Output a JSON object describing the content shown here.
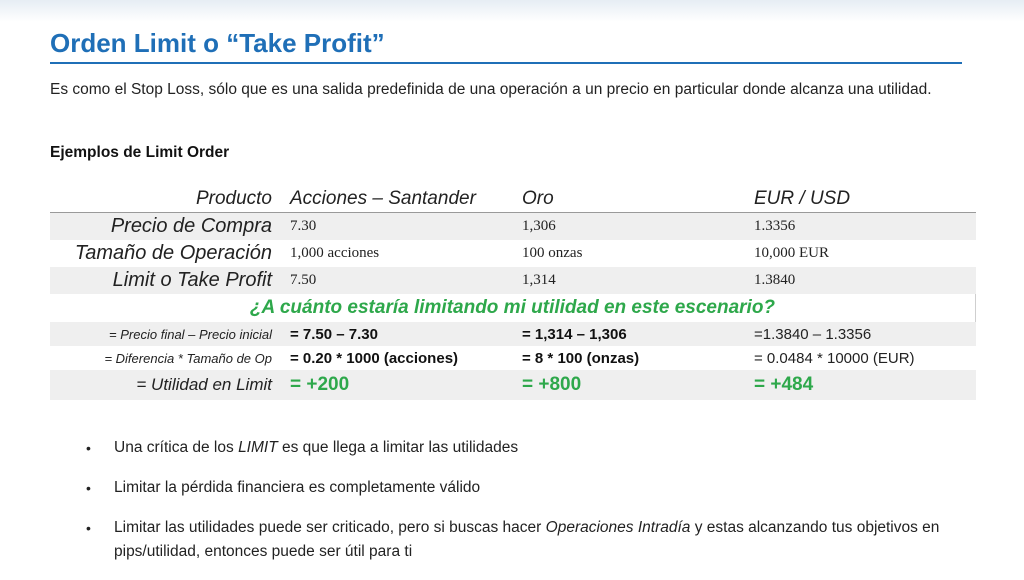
{
  "title": "Orden Limit o “Take Profit”",
  "intro": "Es como el Stop Loss, sólo que es una salida predefinida de una operación a un precio en particular donde alcanza una utilidad.",
  "subheading": "Ejemplos de Limit Order",
  "table": {
    "header": {
      "label": "Producto",
      "c1": "Acciones – Santander",
      "c2": "Oro",
      "c3": "EUR / USD"
    },
    "rows": [
      {
        "label": "Precio de Compra",
        "c1": "7.30",
        "c2": "1,306",
        "c3": "1.3356"
      },
      {
        "label": "Tamaño de Operación",
        "c1": "1,000 acciones",
        "c2": "100 onzas",
        "c3": "10,000 EUR"
      },
      {
        "label": "Limit o Take Profit",
        "c1": "7.50",
        "c2": "1,314",
        "c3": "1.3840"
      }
    ],
    "question": "¿A cuánto estaría limitando mi utilidad en este escenario?",
    "calc": [
      {
        "label": "= Precio final – Precio inicial",
        "c1": "= 7.50 – 7.30",
        "c2": "= 1,314 – 1,306",
        "c3": "=1.3840 – 1.3356"
      },
      {
        "label": "= Diferencia * Tamaño de Op",
        "c1": "= 0.20 * 1000 (acciones)",
        "c2": "= 8 * 100 (onzas)",
        "c3": "= 0.0484 * 10000 (EUR)"
      }
    ],
    "result": {
      "label": "= Utilidad en Limit",
      "c1": "= +200",
      "c2": "= +800",
      "c3": "= +484"
    }
  },
  "bullets": {
    "b1_pre": "Una crítica de los ",
    "b1_em": "LIMIT",
    "b1_post": " es que llega a limitar las utilidades",
    "b2": "Limitar la pérdida financiera es completamente válido",
    "b3_pre": "Limitar las utilidades puede ser criticado, pero si buscas hacer ",
    "b3_em": "Operaciones Intradía",
    "b3_post": " y estas alcanzando tus objetivos en pips/utilidad, entonces puede ser útil para ti",
    "marker": "•"
  },
  "colors": {
    "title": "#1f6fb7",
    "accent_green": "#2ea84b",
    "row_shade": "#efefef"
  }
}
